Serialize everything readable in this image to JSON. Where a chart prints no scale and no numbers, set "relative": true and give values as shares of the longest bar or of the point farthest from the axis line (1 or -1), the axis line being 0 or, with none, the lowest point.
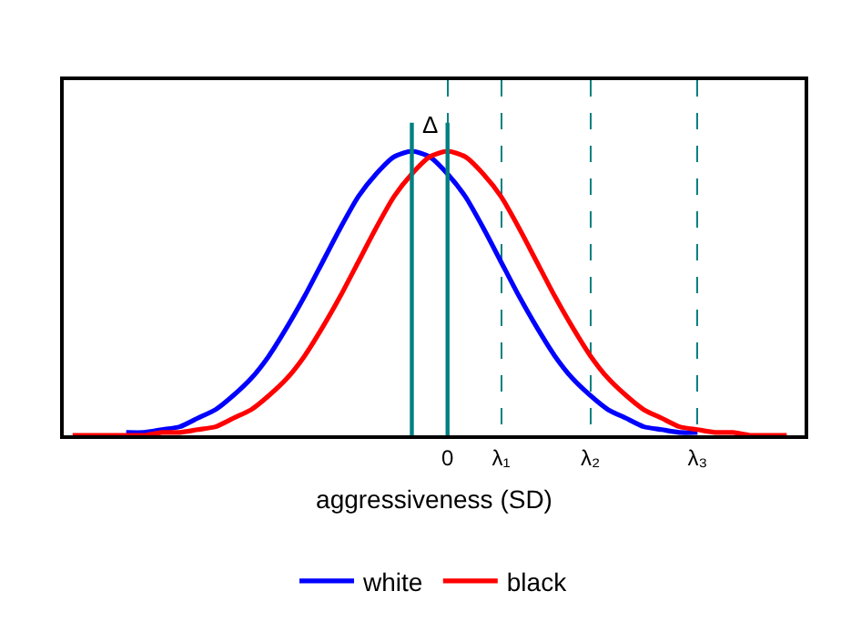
{
  "chart_data": {
    "type": "line",
    "relative": true,
    "xlabel": "aggressiveness (SD)",
    "categories": [
      null,
      null,
      null,
      null,
      null,
      null,
      null,
      null,
      null,
      null,
      null,
      null,
      null,
      null,
      null,
      null,
      null,
      null,
      null,
      null,
      null,
      "0",
      null,
      null,
      "λ₁",
      null,
      null,
      null,
      null,
      "λ₂",
      null,
      null,
      null,
      null,
      null,
      "λ₃",
      null,
      null,
      null,
      null,
      null
    ],
    "series": [
      {
        "name": "white",
        "color": "#0000ff",
        "values": [
          null,
          null,
          null,
          0.01,
          0.01,
          0.02,
          0.03,
          0.06,
          0.09,
          0.14,
          0.2,
          0.28,
          0.38,
          0.49,
          0.61,
          0.73,
          0.84,
          0.92,
          0.98,
          1,
          0.98,
          0.92,
          0.84,
          0.73,
          0.61,
          0.49,
          0.38,
          0.28,
          0.2,
          0.14,
          0.09,
          0.06,
          0.03,
          0.02,
          0.01,
          0.01,
          null,
          null,
          null,
          null,
          null
        ]
      },
      {
        "name": "black",
        "color": "#ff0000",
        "values": [
          0,
          0,
          0,
          0,
          0,
          0.01,
          0.01,
          0.02,
          0.03,
          0.06,
          0.09,
          0.14,
          0.2,
          0.28,
          0.38,
          0.49,
          0.61,
          0.73,
          0.84,
          0.92,
          0.98,
          1,
          0.98,
          0.92,
          0.84,
          0.73,
          0.61,
          0.49,
          0.38,
          0.28,
          0.2,
          0.14,
          0.09,
          0.06,
          0.03,
          0.02,
          0.01,
          0.01,
          0,
          0,
          0
        ]
      }
    ],
    "annotations": [
      "Δ"
    ],
    "legend": "bottom",
    "marker": "none",
    "line_style": "solid",
    "grid": "x"
  }
}
